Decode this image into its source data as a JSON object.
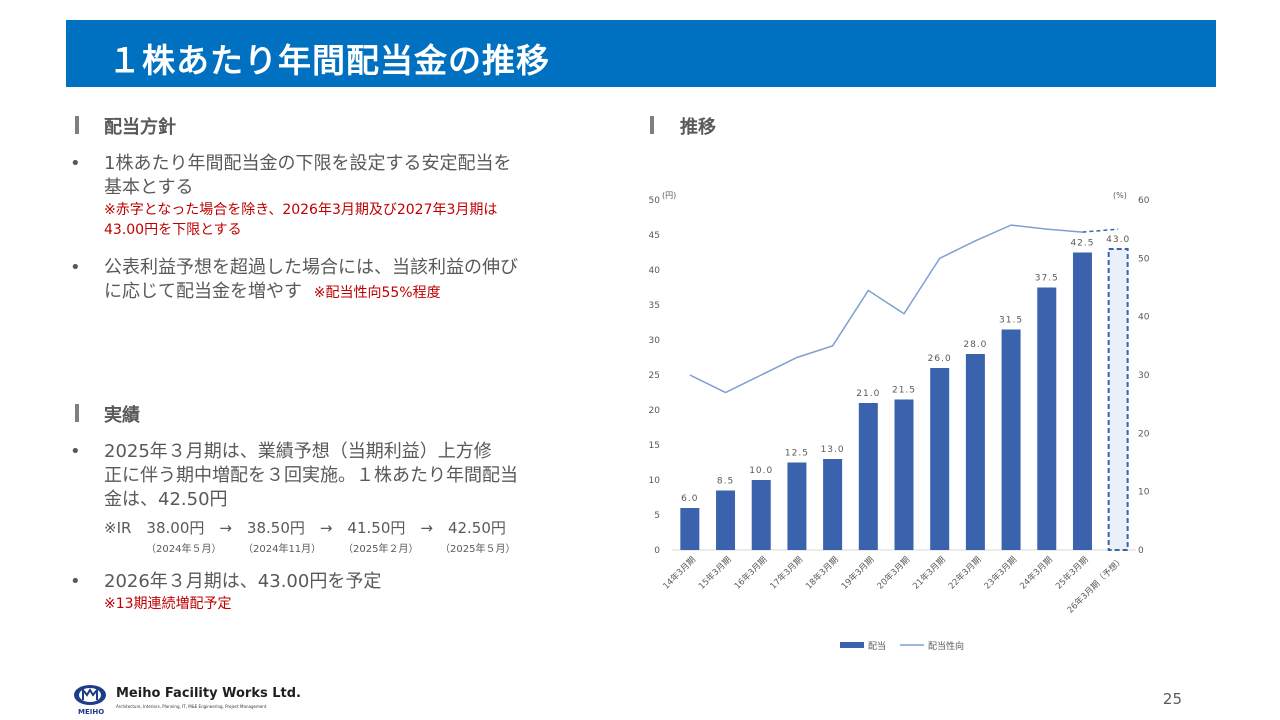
{
  "title": "１株あたり年間配当金の推移",
  "policy": {
    "heading": "配当方針",
    "bullet1": {
      "line1": "1株あたり年間配当金の下限を設定する安定配当を",
      "line2": "基本とする",
      "note1": "※赤字となった場合を除き、2026年3月期及び2027年3月期は",
      "note2": "43.00円を下限とする"
    },
    "bullet2": {
      "line1": "公表利益予想を超過した場合には、当該利益の伸び",
      "line2": "に応じて配当金を増やす",
      "note": "※配当性向55%程度"
    }
  },
  "results": {
    "heading": "実績",
    "bullet1": {
      "line1": "2025年３月期は、業績予想（当期利益）上方修",
      "line2": "正に伴う期中増配を３回実施。１株あたり年間配当",
      "line3": "金は、42.50円"
    },
    "ir": {
      "line": "※IR　38.00円　→　38.50円　→　41.50円　→　42.50円",
      "dates": [
        "（2024年５月）",
        "（2024年11月）",
        "（2025年２月）",
        "（2025年５月）"
      ]
    },
    "bullet2": {
      "line1": "2026年３月期は、43.00円を予定",
      "note": "※13期連続増配予定"
    }
  },
  "chart_section": {
    "heading": "推移"
  },
  "chart_data": {
    "type": "bar",
    "categories": [
      "14年3月期",
      "15年3月期",
      "16年3月期",
      "17年3月期",
      "18年3月期",
      "19年3月期",
      "20年3月期",
      "21年3月期",
      "22年3月期",
      "23年3月期",
      "24年3月期",
      "25年3月期",
      "26年3月期（予想）"
    ],
    "series": [
      {
        "name": "配当",
        "axis": "left",
        "values": [
          6.0,
          8.5,
          10.0,
          12.5,
          13.0,
          21.0,
          21.5,
          26.0,
          28.0,
          31.5,
          37.5,
          42.5,
          43.0
        ],
        "labels": [
          "6.0",
          "8.5",
          "10.0",
          "12.5",
          "13.0",
          "21.0",
          "21.5",
          "26.0",
          "28.0",
          "31.5",
          "37.5",
          "42.5",
          "43.0"
        ]
      },
      {
        "name": "配当性向",
        "type": "line",
        "axis": "right",
        "values": [
          30.0,
          27.0,
          30.0,
          33.0,
          35.0,
          44.5,
          40.5,
          50.0,
          53.0,
          55.7,
          55.0,
          54.5,
          55.0
        ]
      }
    ],
    "left_unit": "(円)",
    "right_unit": "(%)",
    "ylim_left": [
      0,
      50
    ],
    "ylim_right": [
      0,
      60
    ],
    "yticks_left": [
      0,
      5,
      10,
      15,
      20,
      25,
      30,
      35,
      40,
      45,
      50
    ],
    "yticks_right": [
      0,
      10,
      20,
      30,
      40,
      50,
      60
    ],
    "forecast_index": 12,
    "legend": [
      "配当",
      "配当性向"
    ],
    "colors": {
      "bar": "#3a62ad",
      "line": "#7f9fd3",
      "forecast_fill": "#eaf0f8"
    }
  },
  "footer": {
    "company": "Meiho Facility Works Ltd.",
    "tagline": "Architecture, Interiors, Planning, IT, M&E Engineering, Project Management",
    "logo_word": "MEIHO",
    "page": "25"
  }
}
